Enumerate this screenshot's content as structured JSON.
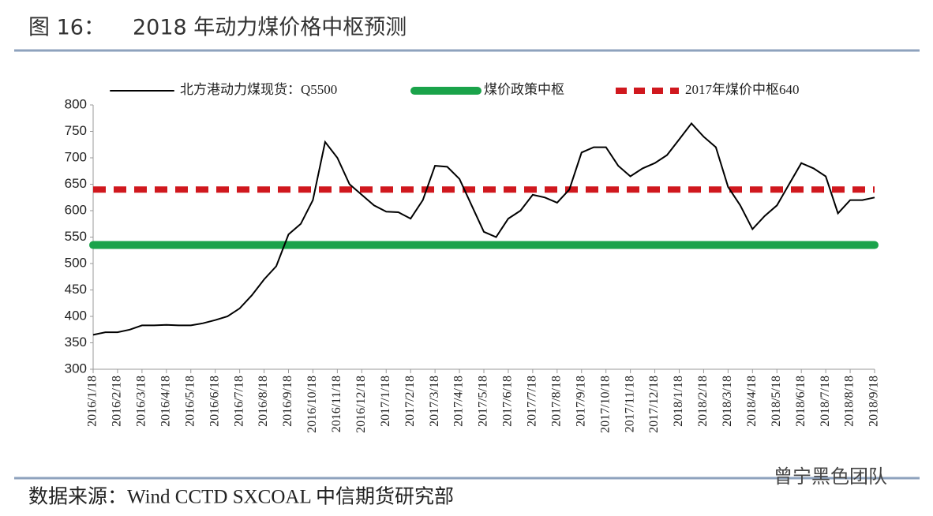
{
  "chart_data": {
    "type": "line",
    "title_prefix": "图 16：",
    "title": "2018 年动力煤价格中枢预测",
    "source": "数据来源：Wind CCTD SXCOAL  中信期货研究部",
    "watermark": "曾宁黑色团队",
    "categories": [
      "2016/1/18",
      null,
      "2016/2/18",
      null,
      "2016/3/18",
      null,
      "2016/4/18",
      null,
      "2016/5/18",
      null,
      "2016/6/18",
      null,
      "2016/7/18",
      null,
      "2016/8/18",
      null,
      "2016/9/18",
      null,
      "2016/10/18",
      null,
      "2016/11/18",
      null,
      "2016/12/18",
      null,
      "2017/1/18",
      null,
      "2017/2/18",
      null,
      "2017/3/18",
      null,
      "2017/4/18",
      null,
      "2017/5/18",
      null,
      "2017/6/18",
      null,
      "2017/7/18",
      null,
      "2017/8/18",
      null,
      "2017/9/18",
      null,
      "2017/10/18",
      null,
      "2017/11/18",
      null,
      "2017/12/18",
      null,
      "2018/1/18",
      null,
      "2018/2/18",
      null,
      "2018/3/18",
      null,
      "2018/4/18",
      null,
      "2018/5/18",
      null,
      "2018/6/18",
      null,
      "2018/7/18",
      null,
      "2018/8/18",
      null,
      "2018/9/18"
    ],
    "series": [
      {
        "name": "北方港动力煤现货：Q5500",
        "color": "#000000",
        "values": [
          365,
          370,
          370,
          375,
          383,
          383,
          384,
          383,
          383,
          387,
          393,
          400,
          415,
          440,
          470,
          495,
          555,
          575,
          620,
          730,
          700,
          650,
          630,
          610,
          598,
          597,
          585,
          620,
          685,
          683,
          660,
          610,
          560,
          550,
          585,
          600,
          630,
          625,
          615,
          640,
          710,
          720,
          720,
          685,
          665,
          680,
          690,
          705,
          735,
          765,
          740,
          720,
          645,
          610,
          565,
          590,
          610,
          650,
          690,
          680,
          665,
          595,
          620,
          620,
          625
        ]
      }
    ],
    "reference_lines": [
      {
        "name": "煤价政策中枢",
        "color": "#1aa34a",
        "value": 535,
        "dash": false
      },
      {
        "name": "2017年煤价中枢640",
        "color": "#d0181e",
        "value": 640,
        "dash": true
      }
    ],
    "ylim": [
      300,
      800
    ],
    "yticks": [
      300,
      350,
      400,
      450,
      500,
      550,
      600,
      650,
      700,
      750,
      800
    ],
    "grid": false
  }
}
